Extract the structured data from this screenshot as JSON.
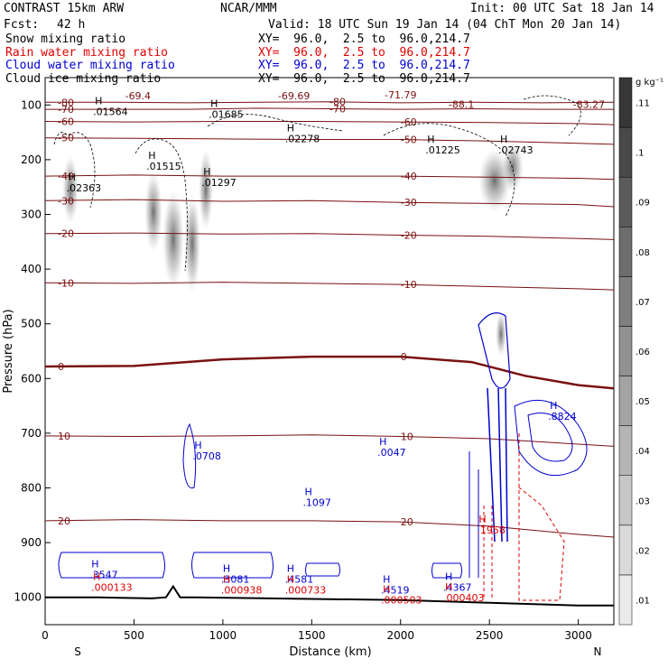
{
  "header": {
    "model": "CONTRAST 15km ARW",
    "org": "NCAR/MMM",
    "init": "Init: 00 UTC Sat 18 Jan 14",
    "fcst_label": "Fcst:",
    "fcst_value": "42 h",
    "valid": "Valid: 18 UTC Sun 19 Jan 14 (04 ChT Mon 20 Jan 14)",
    "fields": [
      {
        "name": "Snow mixing ratio",
        "color": "#000000",
        "xy": "XY=  96.0,  2.5 to  96.0,214.7"
      },
      {
        "name": "Rain water mixing ratio",
        "color": "#e00000",
        "xy": "XY=  96.0,  2.5 to  96.0,214.7"
      },
      {
        "name": "Cloud water mixing ratio",
        "color": "#0000d0",
        "xy": "XY=  96.0,  2.5 to  96.0,214.7"
      },
      {
        "name": "Cloud ice mixing ratio",
        "color": "#000000",
        "xy": "XY=  96.0,  2.5 to  96.0,214.7"
      }
    ]
  },
  "chart_data": {
    "type": "contour",
    "xlabel": "Distance (km)",
    "ylabel": "Pressure (hPa)",
    "xlim": [
      0,
      3200
    ],
    "ylim": [
      1050,
      50
    ],
    "x_ticks": [
      0,
      500,
      1000,
      1500,
      2000,
      2500,
      3000
    ],
    "y_ticks": [
      100,
      200,
      300,
      400,
      500,
      600,
      700,
      800,
      900,
      1000
    ],
    "end_labels": {
      "left": "S",
      "right": "N"
    },
    "colorbar": {
      "unit": "g kg⁻¹",
      "levels": [
        ".01",
        ".02",
        ".03",
        ".04",
        ".05",
        ".06",
        ".07",
        ".08",
        ".09",
        ".1",
        ".11"
      ]
    },
    "temperature_contours": [
      {
        "level": -80,
        "points": [
          [
            0,
            95
          ],
          [
            400,
            95
          ],
          [
            800,
            96
          ],
          [
            1200,
            95
          ],
          [
            1600,
            94
          ],
          [
            2000,
            96
          ],
          [
            2400,
            95
          ],
          [
            2800,
            96
          ],
          [
            3200,
            95
          ]
        ]
      },
      {
        "level": -70,
        "points": [
          [
            0,
            108
          ],
          [
            400,
            108
          ],
          [
            800,
            108
          ],
          [
            1200,
            106
          ],
          [
            1600,
            107
          ],
          [
            2000,
            108
          ],
          [
            2400,
            107
          ],
          [
            2800,
            108
          ],
          [
            3200,
            108
          ]
        ]
      },
      {
        "level": -60,
        "points": [
          [
            0,
            130
          ],
          [
            500,
            131
          ],
          [
            1000,
            130
          ],
          [
            1500,
            130
          ],
          [
            2000,
            131
          ],
          [
            2500,
            132
          ],
          [
            3000,
            134
          ],
          [
            3200,
            136
          ]
        ]
      },
      {
        "level": -50,
        "points": [
          [
            0,
            160
          ],
          [
            500,
            161
          ],
          [
            1000,
            162
          ],
          [
            1500,
            163
          ],
          [
            2000,
            163
          ],
          [
            2500,
            166
          ],
          [
            3000,
            170
          ],
          [
            3200,
            172
          ]
        ]
      },
      {
        "level": -40,
        "points": [
          [
            0,
            230
          ],
          [
            500,
            228
          ],
          [
            1000,
            230
          ],
          [
            1500,
            230
          ],
          [
            2000,
            230
          ],
          [
            2500,
            232
          ],
          [
            3000,
            234
          ],
          [
            3200,
            236
          ]
        ]
      },
      {
        "level": -30,
        "points": [
          [
            0,
            275
          ],
          [
            500,
            273
          ],
          [
            1000,
            276
          ],
          [
            1500,
            275
          ],
          [
            2000,
            278
          ],
          [
            2500,
            280
          ],
          [
            3000,
            282
          ],
          [
            3200,
            286
          ]
        ]
      },
      {
        "level": -20,
        "points": [
          [
            0,
            335
          ],
          [
            500,
            334
          ],
          [
            1000,
            336
          ],
          [
            1500,
            335
          ],
          [
            2000,
            338
          ],
          [
            2500,
            340
          ],
          [
            3000,
            344
          ],
          [
            3200,
            346
          ]
        ]
      },
      {
        "level": -10,
        "points": [
          [
            0,
            425
          ],
          [
            500,
            426
          ],
          [
            1000,
            424
          ],
          [
            1500,
            426
          ],
          [
            2000,
            428
          ],
          [
            2500,
            432
          ],
          [
            3000,
            436
          ],
          [
            3200,
            438
          ]
        ]
      },
      {
        "level": 0,
        "points": [
          [
            0,
            578
          ],
          [
            500,
            577
          ],
          [
            1000,
            565
          ],
          [
            1500,
            560
          ],
          [
            2000,
            560
          ],
          [
            2400,
            570
          ],
          [
            2700,
            595
          ],
          [
            3000,
            612
          ],
          [
            3200,
            618
          ]
        ]
      },
      {
        "level": 10,
        "points": [
          [
            0,
            705
          ],
          [
            500,
            706
          ],
          [
            1000,
            705
          ],
          [
            1500,
            703
          ],
          [
            2000,
            706
          ],
          [
            2500,
            710
          ],
          [
            3000,
            720
          ],
          [
            3200,
            724
          ]
        ]
      },
      {
        "level": 20,
        "points": [
          [
            0,
            860
          ],
          [
            500,
            858
          ],
          [
            1000,
            860
          ],
          [
            1500,
            860
          ],
          [
            2000,
            862
          ],
          [
            2500,
            870
          ],
          [
            3000,
            885
          ],
          [
            3200,
            890
          ]
        ]
      }
    ],
    "surface": [
      [
        0,
        1000
      ],
      [
        300,
        1000
      ],
      [
        600,
        1002
      ],
      [
        680,
        1000
      ],
      [
        720,
        980
      ],
      [
        760,
        1000
      ],
      [
        850,
        1000
      ],
      [
        1500,
        1003
      ],
      [
        2000,
        1005
      ],
      [
        2500,
        1010
      ],
      [
        3000,
        1015
      ],
      [
        3200,
        1015
      ]
    ],
    "maxima": [
      {
        "text": ".02363",
        "x": 130,
        "p": 255,
        "color": "#000000"
      },
      {
        "text": ".01564",
        "x": 280,
        "p": 115,
        "color": "#000000"
      },
      {
        "text": ".01515",
        "x": 580,
        "p": 215,
        "color": "#000000"
      },
      {
        "text": ".01297",
        "x": 890,
        "p": 245,
        "color": "#000000"
      },
      {
        "text": ".01685",
        "x": 930,
        "p": 120,
        "color": "#000000"
      },
      {
        "text": ".02278",
        "x": 1360,
        "p": 165,
        "color": "#000000"
      },
      {
        "text": ".01225",
        "x": 2150,
        "p": 185,
        "color": "#000000"
      },
      {
        "text": ".02743",
        "x": 2560,
        "p": 185,
        "color": "#000000"
      },
      {
        "text": ".0708",
        "x": 840,
        "p": 745,
        "color": "#0000d0"
      },
      {
        "text": ".1097",
        "x": 1460,
        "p": 830,
        "color": "#0000d0"
      },
      {
        "text": ".0047",
        "x": 1880,
        "p": 738,
        "color": "#0000d0"
      },
      {
        "text": ".8824",
        "x": 2840,
        "p": 672,
        "color": "#0000d0"
      },
      {
        "text": ".3547",
        "x": 260,
        "p": 962,
        "color": "#0000d0"
      },
      {
        "text": ".3081",
        "x": 1000,
        "p": 970,
        "color": "#0000d0"
      },
      {
        "text": ".4581",
        "x": 1360,
        "p": 970,
        "color": "#0000d0"
      },
      {
        "text": ".4519",
        "x": 1900,
        "p": 990,
        "color": "#0000d0"
      },
      {
        "text": ".4367",
        "x": 2250,
        "p": 985,
        "color": "#0000d0"
      },
      {
        "text": ".000133",
        "x": 270,
        "p": 985,
        "color": "#e00000"
      },
      {
        "text": ".000938",
        "x": 1000,
        "p": 990,
        "color": "#e00000"
      },
      {
        "text": ".000733",
        "x": 1360,
        "p": 990,
        "color": "#e00000"
      },
      {
        "text": ".000503",
        "x": 1900,
        "p": 1008,
        "color": "#e00000"
      },
      {
        "text": ".000403",
        "x": 2250,
        "p": 1004,
        "color": "#e00000"
      },
      {
        "text": ".1958",
        "x": 2440,
        "p": 880,
        "color": "#e00000"
      }
    ],
    "minima": [
      {
        "text": "-69.4",
        "x": 450,
        "p": 90
      },
      {
        "text": "-69.69",
        "x": 1310,
        "p": 90
      },
      {
        "text": "-71.79",
        "x": 1910,
        "p": 88
      },
      {
        "text": "-88.1",
        "x": 2270,
        "p": 105
      },
      {
        "text": "-83.27",
        "x": 2970,
        "p": 105
      }
    ]
  }
}
